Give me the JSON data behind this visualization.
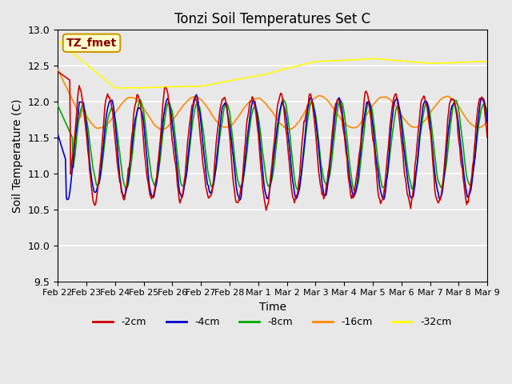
{
  "title": "Tonzi Soil Temperatures Set C",
  "xlabel": "Time",
  "ylabel": "Soil Temperature (C)",
  "ylim": [
    9.5,
    13.0
  ],
  "colors": {
    "-2cm": "#cc0000",
    "-4cm": "#0000cc",
    "-8cm": "#00aa00",
    "-16cm": "#ff8800",
    "-32cm": "#ffff00"
  },
  "legend_label": "TZ_fmet",
  "legend_box_color": "#ffffcc",
  "legend_box_edge": "#cc9900",
  "legend_text_color": "#880000",
  "xtick_labels": [
    "Feb 22",
    "Feb 23",
    "Feb 24",
    "Feb 25",
    "Feb 26",
    "Feb 27",
    "Feb 28",
    "Mar 1",
    "Mar 2",
    "Mar 3",
    "Mar 4",
    "Mar 5",
    "Mar 6",
    "Mar 7",
    "Mar 8",
    "Mar 9"
  ],
  "ytick_labels": [
    "9.5",
    "10.0",
    "10.5",
    "11.0",
    "11.5",
    "12.0",
    "12.5",
    "13.0"
  ],
  "ytick_vals": [
    9.5,
    10.0,
    10.5,
    11.0,
    11.5,
    12.0,
    12.5,
    13.0
  ],
  "n_points": 500
}
